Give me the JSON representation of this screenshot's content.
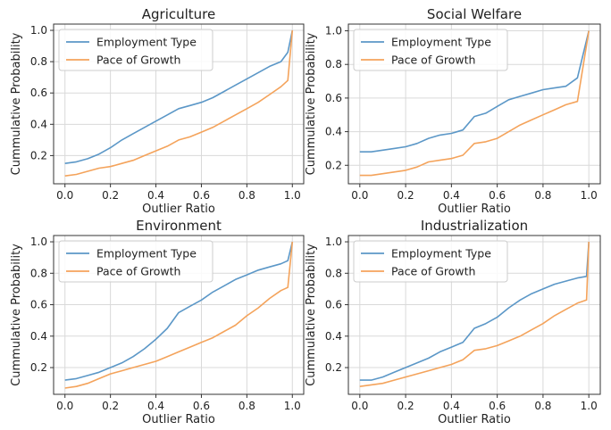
{
  "colors": {
    "employment": "#5b97c7",
    "growth": "#f4a35b",
    "grid": "#d9d9d9",
    "axis": "#333333"
  },
  "chart_data": [
    {
      "type": "line",
      "title": "Agriculture",
      "xlabel": "Outlier Ratio",
      "ylabel": "Cummulative Probability",
      "xlim": [
        -0.05,
        1.05
      ],
      "ylim": [
        0.02,
        1.04
      ],
      "xticks": [
        "0.0",
        "0.2",
        "0.4",
        "0.6",
        "0.8",
        "1.0"
      ],
      "yticks": [
        "0.2",
        "0.4",
        "0.6",
        "0.8",
        "1.0"
      ],
      "grid": true,
      "legend": "upper-left",
      "series": [
        {
          "name": "Employment Type",
          "color": "#5b97c7",
          "x": [
            0.0,
            0.05,
            0.1,
            0.15,
            0.2,
            0.25,
            0.3,
            0.35,
            0.4,
            0.45,
            0.5,
            0.55,
            0.6,
            0.65,
            0.7,
            0.75,
            0.8,
            0.85,
            0.9,
            0.95,
            0.98,
            1.0
          ],
          "y": [
            0.15,
            0.16,
            0.18,
            0.21,
            0.25,
            0.3,
            0.34,
            0.38,
            0.42,
            0.46,
            0.5,
            0.52,
            0.54,
            0.57,
            0.61,
            0.65,
            0.69,
            0.73,
            0.77,
            0.8,
            0.86,
            1.0
          ]
        },
        {
          "name": "Pace of Growth",
          "color": "#f4a35b",
          "x": [
            0.0,
            0.05,
            0.1,
            0.15,
            0.2,
            0.25,
            0.3,
            0.35,
            0.4,
            0.45,
            0.5,
            0.55,
            0.6,
            0.65,
            0.7,
            0.75,
            0.8,
            0.85,
            0.9,
            0.95,
            0.98,
            1.0
          ],
          "y": [
            0.07,
            0.08,
            0.1,
            0.12,
            0.13,
            0.15,
            0.17,
            0.2,
            0.23,
            0.26,
            0.3,
            0.32,
            0.35,
            0.38,
            0.42,
            0.46,
            0.5,
            0.54,
            0.59,
            0.64,
            0.68,
            1.0
          ]
        }
      ]
    },
    {
      "type": "line",
      "title": "Social Welfare",
      "xlabel": "Outlier Ratio",
      "ylabel": "Cummulative Probability",
      "xlim": [
        -0.05,
        1.05
      ],
      "ylim": [
        0.09,
        1.04
      ],
      "xticks": [
        "0.0",
        "0.2",
        "0.4",
        "0.6",
        "0.8",
        "1.0"
      ],
      "yticks": [
        "0.2",
        "0.4",
        "0.6",
        "0.8",
        "1.0"
      ],
      "grid": true,
      "legend": "upper-left",
      "series": [
        {
          "name": "Employment Type",
          "color": "#5b97c7",
          "x": [
            0.0,
            0.05,
            0.1,
            0.15,
            0.2,
            0.25,
            0.3,
            0.35,
            0.4,
            0.45,
            0.5,
            0.55,
            0.6,
            0.65,
            0.7,
            0.75,
            0.8,
            0.85,
            0.9,
            0.95,
            1.0
          ],
          "y": [
            0.28,
            0.28,
            0.29,
            0.3,
            0.31,
            0.33,
            0.36,
            0.38,
            0.39,
            0.41,
            0.49,
            0.51,
            0.55,
            0.59,
            0.61,
            0.63,
            0.65,
            0.66,
            0.67,
            0.72,
            1.0
          ]
        },
        {
          "name": "Pace of Growth",
          "color": "#f4a35b",
          "x": [
            0.0,
            0.05,
            0.1,
            0.15,
            0.2,
            0.25,
            0.3,
            0.35,
            0.4,
            0.45,
            0.5,
            0.55,
            0.6,
            0.65,
            0.7,
            0.75,
            0.8,
            0.85,
            0.9,
            0.95,
            1.0
          ],
          "y": [
            0.14,
            0.14,
            0.15,
            0.16,
            0.17,
            0.19,
            0.22,
            0.23,
            0.24,
            0.26,
            0.33,
            0.34,
            0.36,
            0.4,
            0.44,
            0.47,
            0.5,
            0.53,
            0.56,
            0.58,
            1.0
          ]
        }
      ]
    },
    {
      "type": "line",
      "title": "Environment",
      "xlabel": "Outlier Ratio",
      "ylabel": "Cummulative Probability",
      "xlim": [
        -0.05,
        1.05
      ],
      "ylim": [
        0.03,
        1.04
      ],
      "xticks": [
        "0.0",
        "0.2",
        "0.4",
        "0.6",
        "0.8",
        "1.0"
      ],
      "yticks": [
        "0.2",
        "0.4",
        "0.6",
        "0.8",
        "1.0"
      ],
      "grid": true,
      "legend": "upper-left",
      "series": [
        {
          "name": "Employment Type",
          "color": "#5b97c7",
          "x": [
            0.0,
            0.05,
            0.1,
            0.15,
            0.2,
            0.25,
            0.3,
            0.35,
            0.4,
            0.45,
            0.5,
            0.55,
            0.6,
            0.65,
            0.7,
            0.75,
            0.8,
            0.85,
            0.9,
            0.95,
            0.98,
            1.0
          ],
          "y": [
            0.12,
            0.13,
            0.15,
            0.17,
            0.2,
            0.23,
            0.27,
            0.32,
            0.38,
            0.45,
            0.55,
            0.59,
            0.63,
            0.68,
            0.72,
            0.76,
            0.79,
            0.82,
            0.84,
            0.86,
            0.88,
            1.0
          ]
        },
        {
          "name": "Pace of Growth",
          "color": "#f4a35b",
          "x": [
            0.0,
            0.05,
            0.1,
            0.15,
            0.2,
            0.25,
            0.3,
            0.35,
            0.4,
            0.45,
            0.5,
            0.55,
            0.6,
            0.65,
            0.7,
            0.75,
            0.8,
            0.85,
            0.9,
            0.95,
            0.98,
            1.0
          ],
          "y": [
            0.07,
            0.08,
            0.1,
            0.13,
            0.16,
            0.18,
            0.2,
            0.22,
            0.24,
            0.27,
            0.3,
            0.33,
            0.36,
            0.39,
            0.43,
            0.47,
            0.53,
            0.58,
            0.64,
            0.69,
            0.71,
            1.0
          ]
        }
      ]
    },
    {
      "type": "line",
      "title": "Industrialization",
      "xlabel": "Outlier Ratio",
      "ylabel": "Cummulative Probability",
      "xlim": [
        -0.05,
        1.05
      ],
      "ylim": [
        0.03,
        1.04
      ],
      "xticks": [
        "0.0",
        "0.2",
        "0.4",
        "0.6",
        "0.8",
        "1.0"
      ],
      "yticks": [
        "0.2",
        "0.4",
        "0.6",
        "0.8",
        "1.0"
      ],
      "grid": true,
      "legend": "upper-left",
      "series": [
        {
          "name": "Employment Type",
          "color": "#5b97c7",
          "x": [
            0.0,
            0.05,
            0.1,
            0.15,
            0.2,
            0.25,
            0.3,
            0.35,
            0.4,
            0.45,
            0.5,
            0.55,
            0.6,
            0.65,
            0.7,
            0.75,
            0.8,
            0.85,
            0.9,
            0.95,
            0.99,
            1.0
          ],
          "y": [
            0.12,
            0.12,
            0.14,
            0.17,
            0.2,
            0.23,
            0.26,
            0.3,
            0.33,
            0.36,
            0.45,
            0.48,
            0.52,
            0.58,
            0.63,
            0.67,
            0.7,
            0.73,
            0.75,
            0.77,
            0.78,
            1.0
          ]
        },
        {
          "name": "Pace of Growth",
          "color": "#f4a35b",
          "x": [
            0.0,
            0.05,
            0.1,
            0.15,
            0.2,
            0.25,
            0.3,
            0.35,
            0.4,
            0.45,
            0.5,
            0.55,
            0.6,
            0.65,
            0.7,
            0.75,
            0.8,
            0.85,
            0.9,
            0.95,
            0.99,
            1.0
          ],
          "y": [
            0.08,
            0.09,
            0.1,
            0.12,
            0.14,
            0.16,
            0.18,
            0.2,
            0.22,
            0.25,
            0.31,
            0.32,
            0.34,
            0.37,
            0.4,
            0.44,
            0.48,
            0.53,
            0.57,
            0.61,
            0.63,
            1.0
          ]
        }
      ]
    }
  ]
}
